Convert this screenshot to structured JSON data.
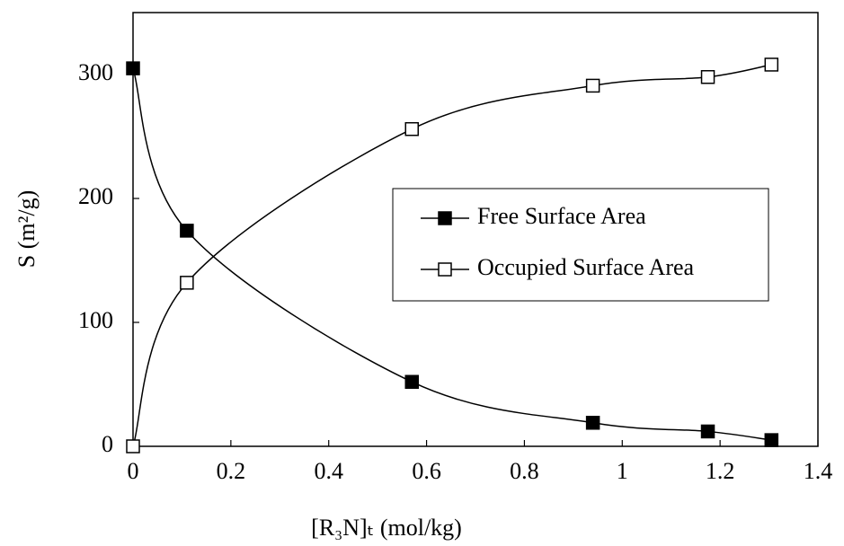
{
  "chart_data": {
    "type": "line",
    "x_label": "[R₃N]ₜ (mol/kg)",
    "y_label": "S (m²/g)",
    "x": [
      0,
      0.11,
      0.57,
      0.94,
      1.175,
      1.305
    ],
    "series": [
      {
        "name": "Free Surface Area",
        "color": "#000000",
        "marker_fill": "#000000",
        "values": [
          305,
          174,
          52,
          19,
          12,
          5
        ]
      },
      {
        "name": "Occupied Surface Area",
        "color": "#000000",
        "marker_fill": "#ffffff",
        "values": [
          0,
          132,
          256,
          291,
          298,
          308
        ]
      }
    ],
    "xlim": [
      0,
      1.4
    ],
    "xticks": [
      0,
      0.2,
      0.4,
      0.6,
      0.8,
      1,
      1.2,
      1.4
    ],
    "ylim": [
      0,
      350
    ],
    "yticks": [
      0,
      100,
      200,
      300
    ]
  }
}
